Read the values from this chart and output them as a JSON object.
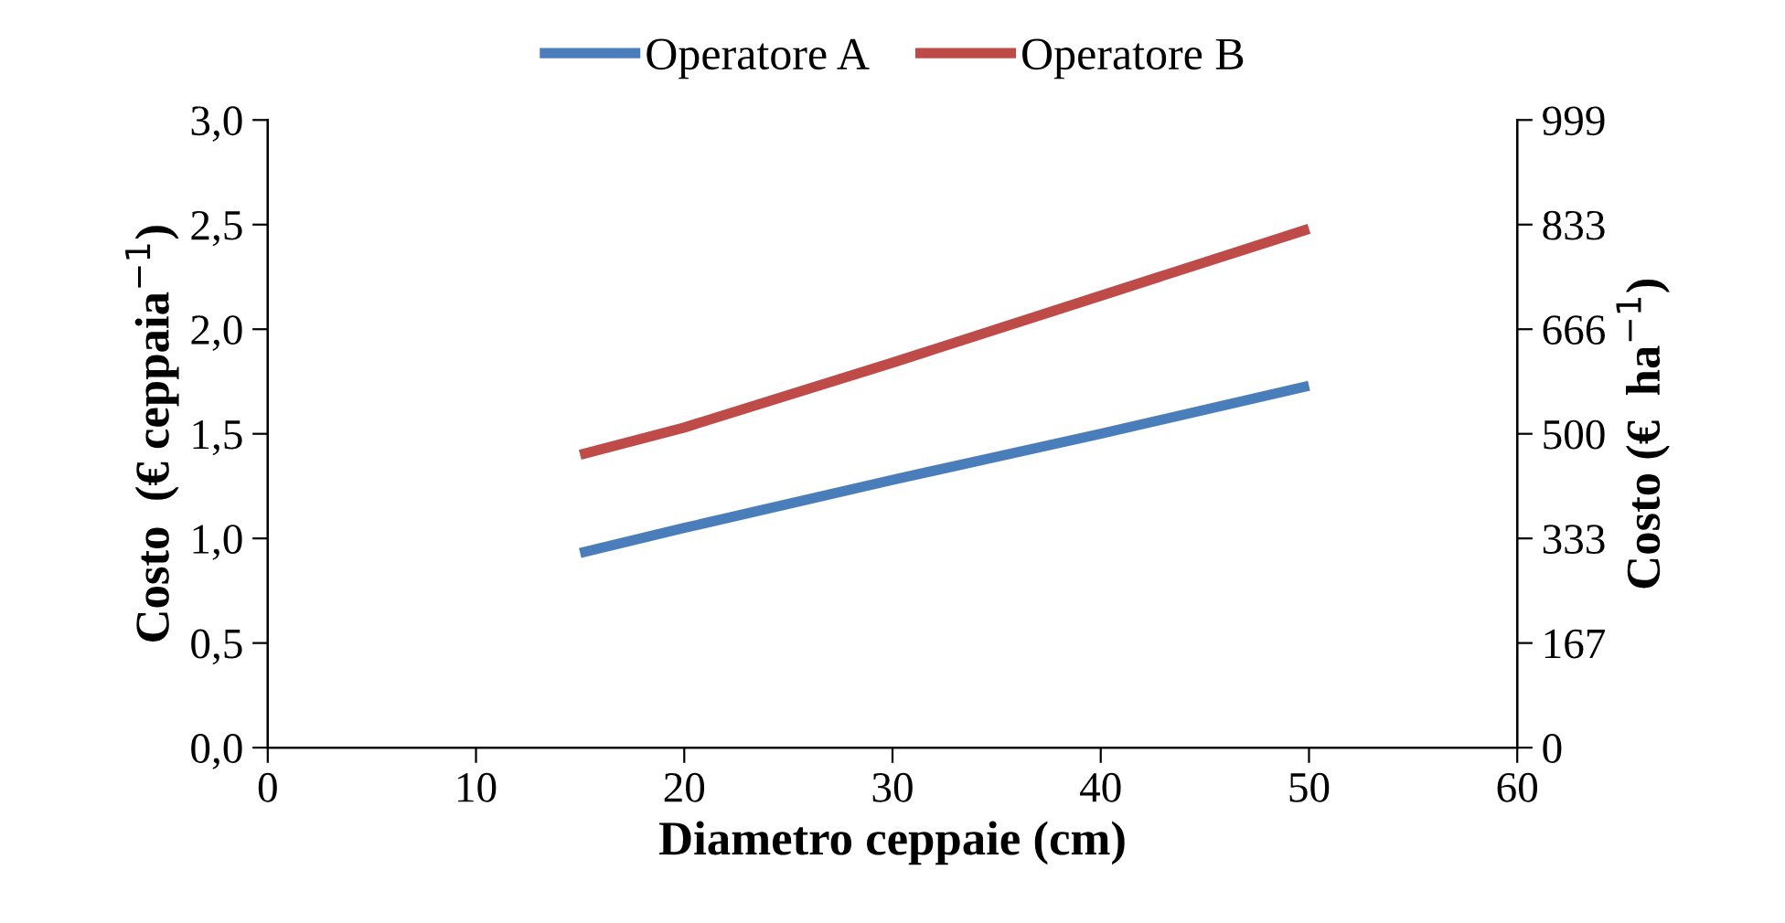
{
  "chart_data": {
    "type": "line",
    "xlabel": "Diametro ceppaie (cm)",
    "ylabel": "Costo  (€ ceppaia$^{−1}$)",
    "y2label": "Costo (€  ha$^{−1}$)",
    "series": [
      {
        "name": "Operatore A",
        "color": "#4a7ebb",
        "x": [
          15,
          20,
          30,
          40,
          50
        ],
        "values": [
          0.93,
          1.05,
          1.28,
          1.5,
          1.73
        ]
      },
      {
        "name": "Operatore B",
        "color": "#be4b48",
        "x": [
          15,
          20,
          30,
          40,
          50
        ],
        "values": [
          1.4,
          1.53,
          1.84,
          2.16,
          2.48
        ]
      }
    ],
    "xlim": [
      0,
      60
    ],
    "xticks": [
      0,
      10,
      20,
      30,
      40,
      50,
      60
    ],
    "ylim": [
      0,
      3
    ],
    "yticks": [
      {
        "value": 0,
        "label": "0,0"
      },
      {
        "value": 0.5,
        "label": "0,5"
      },
      {
        "value": 1,
        "label": "1,0"
      },
      {
        "value": 1.5,
        "label": "1,5"
      },
      {
        "value": 2,
        "label": "2,0"
      },
      {
        "value": 2.5,
        "label": "2,5"
      },
      {
        "value": 3,
        "label": "3,0"
      }
    ],
    "y2lim": [
      0,
      999
    ],
    "y2ticks": [
      0,
      {
        "value": 166.5,
        "label": "167"
      },
      333,
      {
        "value": 499.5,
        "label": "500"
      },
      666,
      {
        "value": 832.5,
        "label": "833"
      },
      999
    ],
    "grid": false,
    "legend": "top",
    "marker": "none",
    "line_style": "solid"
  }
}
